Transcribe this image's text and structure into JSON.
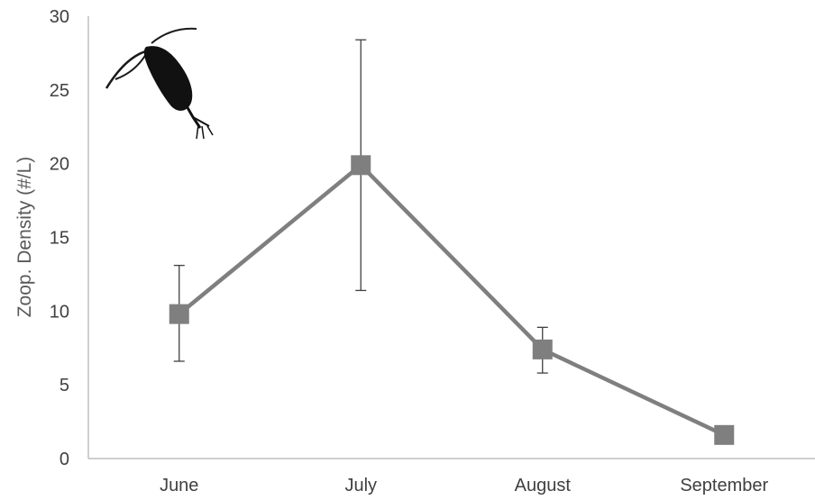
{
  "chart_data": {
    "type": "line",
    "title": "",
    "xlabel": "",
    "ylabel": "Zoop. Density (#/L)",
    "categories": [
      "June",
      "July",
      "August",
      "September"
    ],
    "series": [
      {
        "values": [
          9.8,
          19.9,
          7.4,
          1.6
        ],
        "error_low": [
          6.6,
          11.4,
          5.8,
          null
        ],
        "error_high": [
          13.1,
          28.4,
          8.9,
          null
        ],
        "color": "#7f7f7f",
        "marker": "square"
      }
    ],
    "ylim": [
      0,
      30
    ],
    "yticks": [
      0,
      5,
      10,
      15,
      20,
      25,
      30
    ],
    "grid": false,
    "legend": "none",
    "decoration": "copepod-silhouette-icon"
  }
}
